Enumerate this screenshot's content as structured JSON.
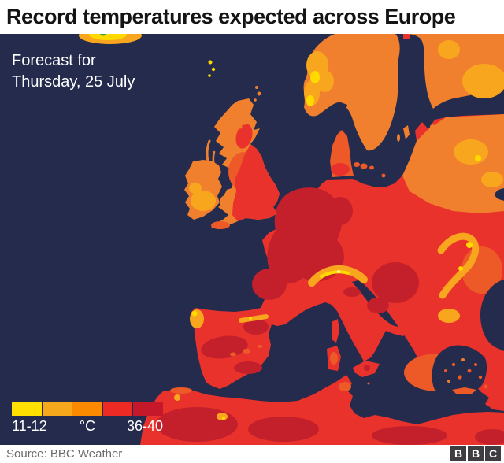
{
  "header": {
    "title": "Record temperatures expected across Europe"
  },
  "map": {
    "annotation_line1": "Forecast for",
    "annotation_line2": "Thursday, 25 July",
    "sea_color": "#242B4D",
    "legend": {
      "min_label": "11-12",
      "unit_label": "°C",
      "max_label": "36-40",
      "colors": [
        "#FFE000",
        "#F5A81C",
        "#FC8A00",
        "#EE2A24",
        "#C5182B"
      ]
    },
    "palette": {
      "yellow": "#FFD900",
      "amber": "#F9A61F",
      "orange": "#F0802D",
      "orange_red": "#ED5A28",
      "red": "#E9322B",
      "dark_red": "#C4202C"
    }
  },
  "footer": {
    "source": "Source: BBC Weather",
    "logo_letters": [
      "B",
      "B",
      "C"
    ]
  }
}
